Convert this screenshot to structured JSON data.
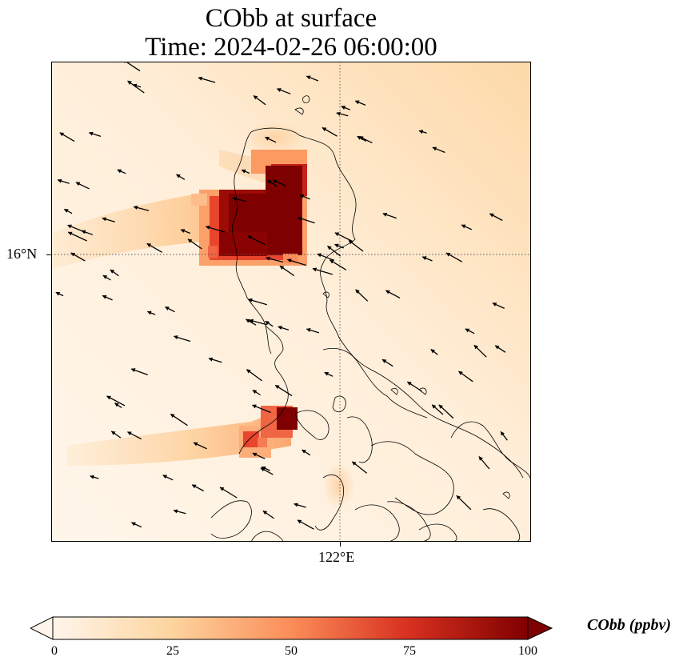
{
  "title": {
    "line1": "CObb at surface",
    "line2": "Time: 2024-02-26 06:00:00"
  },
  "map": {
    "lat_tick_label": "16°N",
    "lon_tick_label": "122°E",
    "gridline_style": "dotted",
    "wind_vectors": "black arrows, mostly pointing west-southwest",
    "hotspots": [
      {
        "region": "northern Luzon, near 16°N",
        "level_ppbv": 100
      },
      {
        "region": "southwest Luzon coast",
        "level_ppbv": 100
      }
    ]
  },
  "colorbar": {
    "label": "CObb (ppbv)",
    "ticks": [
      "0",
      "25",
      "50",
      "75",
      "100"
    ],
    "min": 0,
    "max": 100,
    "extend": "both",
    "colormap": [
      "#fff5eb",
      "#fdd49e",
      "#fc8d59",
      "#d7301f",
      "#7f0000"
    ]
  }
}
